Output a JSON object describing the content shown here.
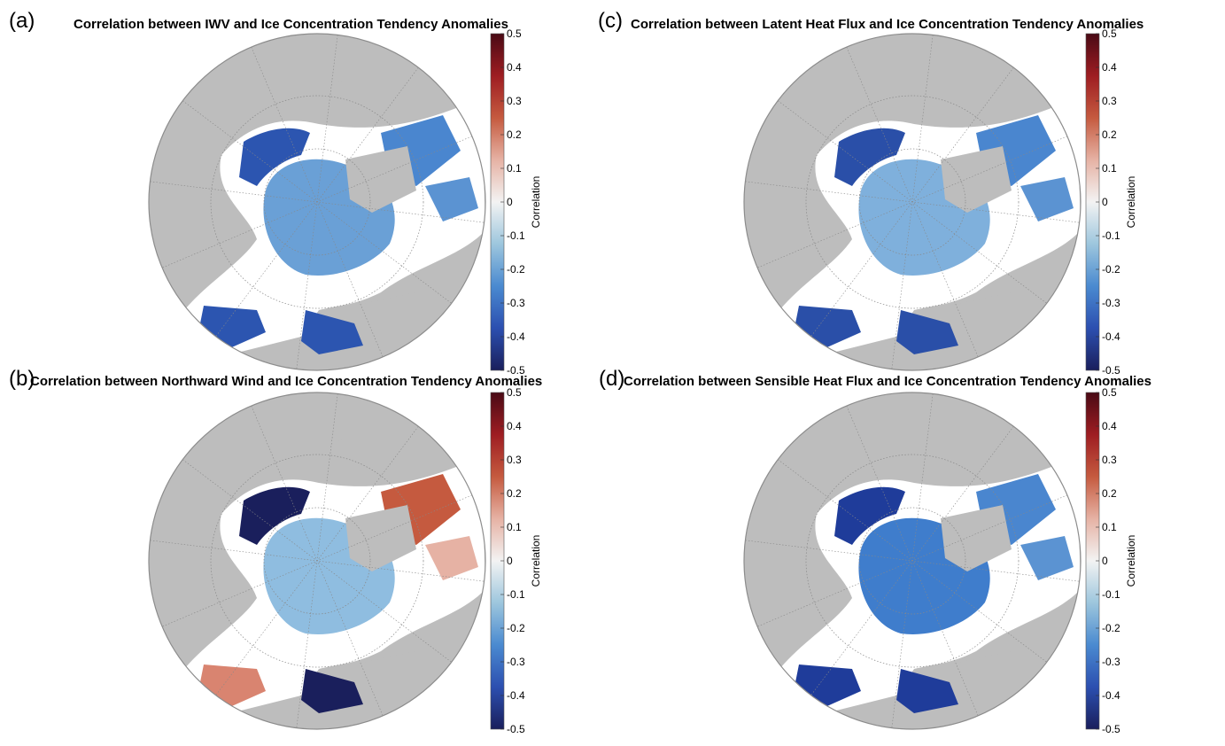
{
  "colorbar": {
    "ticks": [
      "0.5",
      "0.4",
      "0.3",
      "0.2",
      "0.1",
      "0",
      "-0.1",
      "-0.2",
      "-0.3",
      "-0.4",
      "-0.5"
    ],
    "label": "Correlation",
    "range": [
      -0.5,
      0.5
    ],
    "colors": [
      "#1a1f5c",
      "#2c4fb0",
      "#4a8ad0",
      "#9dc6dd",
      "#f3f3f3",
      "#e6b2a4",
      "#c55a3f",
      "#9e1d22",
      "#4a0a15"
    ]
  },
  "map_colors": {
    "land": "#bdbdbd",
    "ocean": "#ffffff",
    "outline": "#8c8c8c"
  },
  "panels": [
    {
      "id": "a",
      "letter": "(a)",
      "title": "Correlation between IWV and Ice Concentration Tendency Anomalies"
    },
    {
      "id": "c",
      "letter": "(c)",
      "title": "Correlation between Latent Heat Flux and Ice Concentration Tendency Anomalies"
    },
    {
      "id": "b",
      "letter": "(b)",
      "title": "Correlation between Northward Wind and Ice Concentration Tendency Anomalies"
    },
    {
      "id": "d",
      "letter": "(d)",
      "title": "Correlation between Sensible Heat Flux and Ice Concentration Tendency Anomalies"
    }
  ]
}
